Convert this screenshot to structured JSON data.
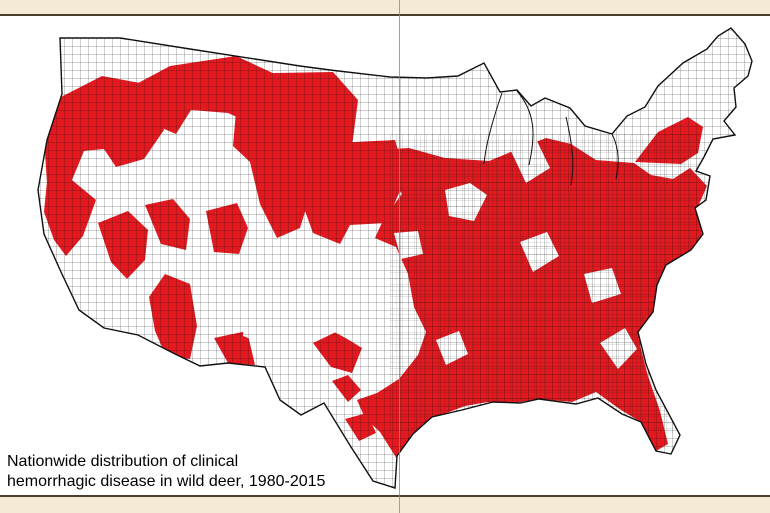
{
  "caption": {
    "line1": "Nationwide distribution of clinical",
    "line2": "hemorrhagic disease in wild deer, 1980-2015"
  },
  "colors": {
    "affected": "#e3191f",
    "unaffected": "#ffffff",
    "border": "#111111",
    "background": "#f4ead6"
  },
  "map": {
    "region": "United States counties",
    "highlight_meaning": "clinical hemorrhagic disease in wild deer"
  }
}
